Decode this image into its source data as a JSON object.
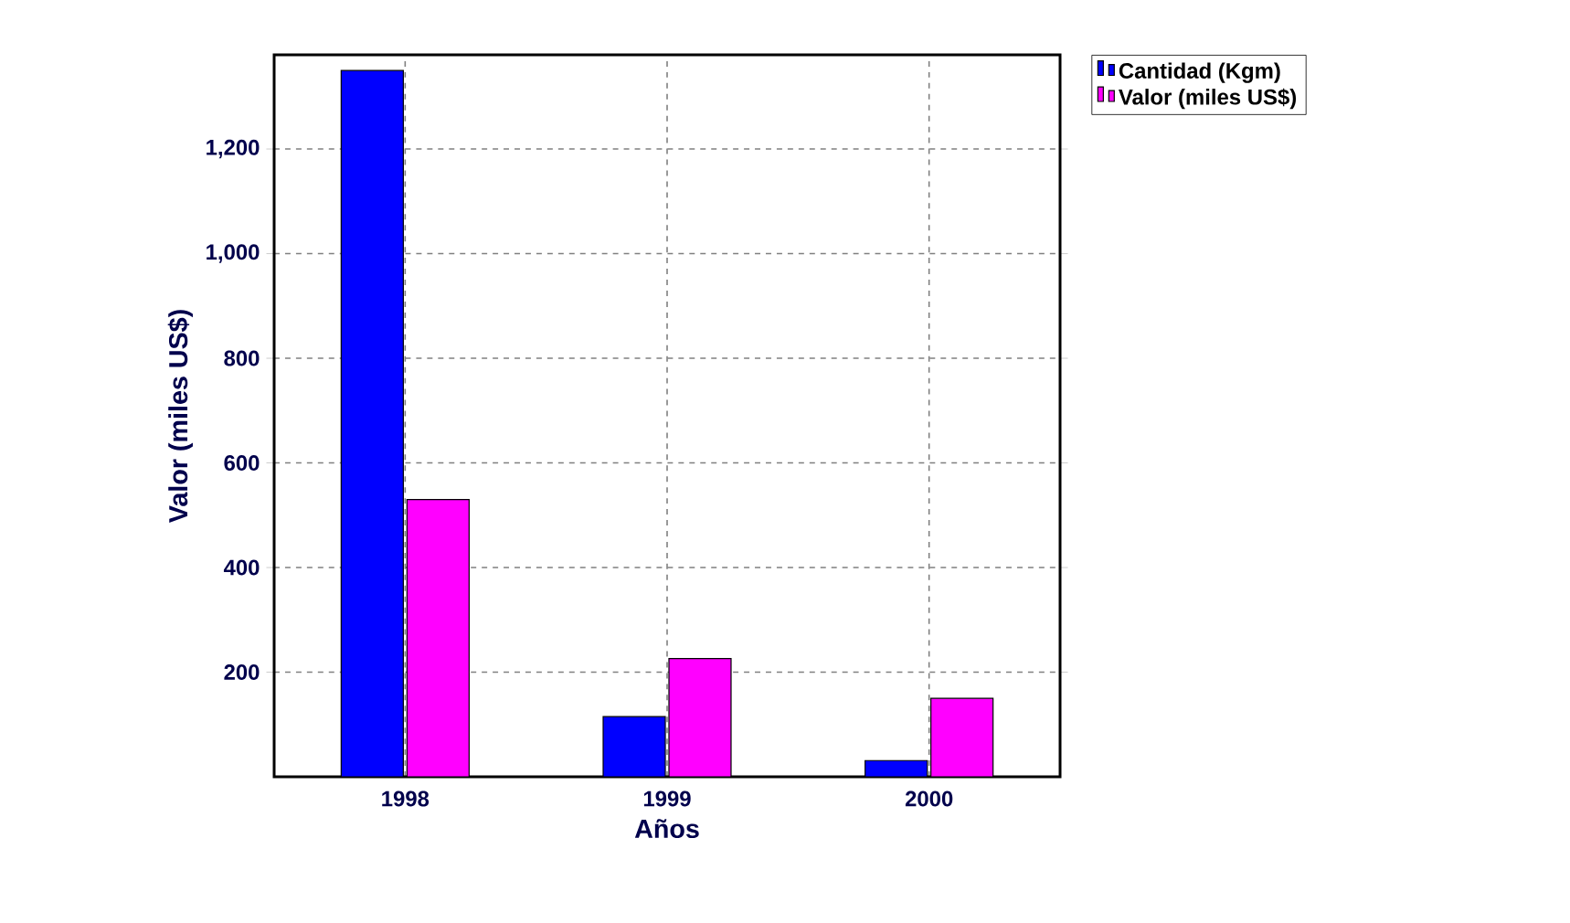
{
  "chart_data": {
    "type": "bar",
    "xlabel": "Años",
    "ylabel": "Valor (miles US$)",
    "categories": [
      "1998",
      "1999",
      "2000"
    ],
    "series": [
      {
        "name": "Cantidad (Kgm)",
        "color": "#0000ff",
        "values": [
          1350,
          115,
          31
        ]
      },
      {
        "name": "Valor (miles US$)",
        "color": "#ff00ff",
        "values": [
          530,
          226,
          150
        ]
      }
    ],
    "ylim": [
      0,
      1380
    ],
    "yticks": [
      200,
      400,
      600,
      800,
      {
        "value": 1000,
        "label": "1,000"
      },
      {
        "value": 1200,
        "label": "1,200"
      }
    ],
    "grid": true,
    "legend": "top right"
  }
}
